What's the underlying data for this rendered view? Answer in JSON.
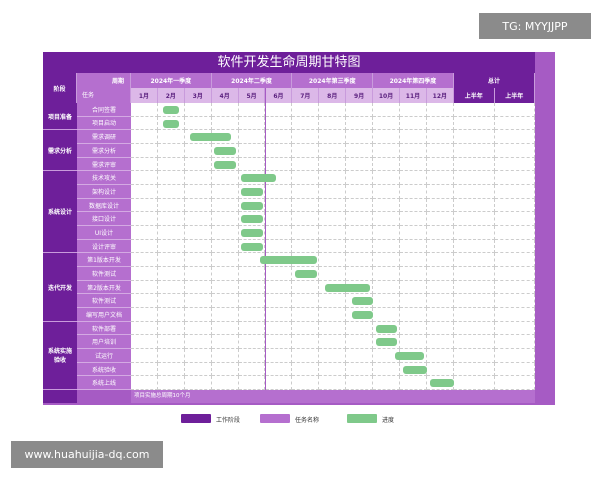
{
  "title": "软件开发生命周期甘特图",
  "header": {
    "phase_label": "阶段",
    "period_label": "周期",
    "task_label": "任务",
    "quarters": [
      "2024年一季度",
      "2024年二季度",
      "2024年第三季度",
      "2024年第四季度"
    ],
    "total_label": "总计",
    "months": [
      "1月",
      "2月",
      "3月",
      "4月",
      "5月",
      "6月",
      "7月",
      "8月",
      "9月",
      "10月",
      "11月",
      "12月"
    ],
    "totals": [
      "上半年",
      "上半年"
    ]
  },
  "phases": [
    {
      "name": "项目准备",
      "rows": 2
    },
    {
      "name": "需求分析",
      "rows": 3
    },
    {
      "name": "系统设计",
      "rows": 6
    },
    {
      "name": "迭代开发",
      "rows": 5
    },
    {
      "name": "系统实施验收",
      "rows": 5
    }
  ],
  "tasks": [
    {
      "name": "合同签署",
      "start": 1.2,
      "end": 1.8
    },
    {
      "name": "项目启动",
      "start": 1.2,
      "end": 1.8
    },
    {
      "name": "需求调研",
      "start": 2.2,
      "end": 3.7
    },
    {
      "name": "需求分析",
      "start": 3.1,
      "end": 3.9
    },
    {
      "name": "需求评审",
      "start": 3.1,
      "end": 3.9
    },
    {
      "name": "技术攻关",
      "start": 4.1,
      "end": 5.4
    },
    {
      "name": "架构设计",
      "start": 4.1,
      "end": 4.9
    },
    {
      "name": "数据库设计",
      "start": 4.1,
      "end": 4.9
    },
    {
      "name": "接口设计",
      "start": 4.1,
      "end": 4.9
    },
    {
      "name": "UI设计",
      "start": 4.1,
      "end": 4.9
    },
    {
      "name": "设计评审",
      "start": 4.1,
      "end": 4.9
    },
    {
      "name": "第1版本开发",
      "start": 4.8,
      "end": 6.9
    },
    {
      "name": "软件测试",
      "start": 6.1,
      "end": 6.9
    },
    {
      "name": "第2版本开发",
      "start": 7.2,
      "end": 8.9
    },
    {
      "name": "软件测试",
      "start": 8.2,
      "end": 9.0
    },
    {
      "name": "编写用户文档",
      "start": 8.2,
      "end": 9.0
    },
    {
      "name": "软件部署",
      "start": 9.1,
      "end": 9.9
    },
    {
      "name": "用户培训",
      "start": 9.1,
      "end": 9.9
    },
    {
      "name": "试运行",
      "start": 9.8,
      "end": 10.9
    },
    {
      "name": "系统验收",
      "start": 10.1,
      "end": 11.0
    },
    {
      "name": "系统上线",
      "start": 11.1,
      "end": 12.0
    }
  ],
  "footer": "项目实施总周期10个月",
  "legend": [
    {
      "label": "工作阶段",
      "color": "#6e1f9a"
    },
    {
      "label": "任务名称",
      "color": "#b56fcf"
    },
    {
      "label": "进度",
      "color": "#7fc98a"
    }
  ],
  "watermarks": {
    "top": "TG: MYYJJPP",
    "bottom": "www.huahuijia-dq.com"
  }
}
